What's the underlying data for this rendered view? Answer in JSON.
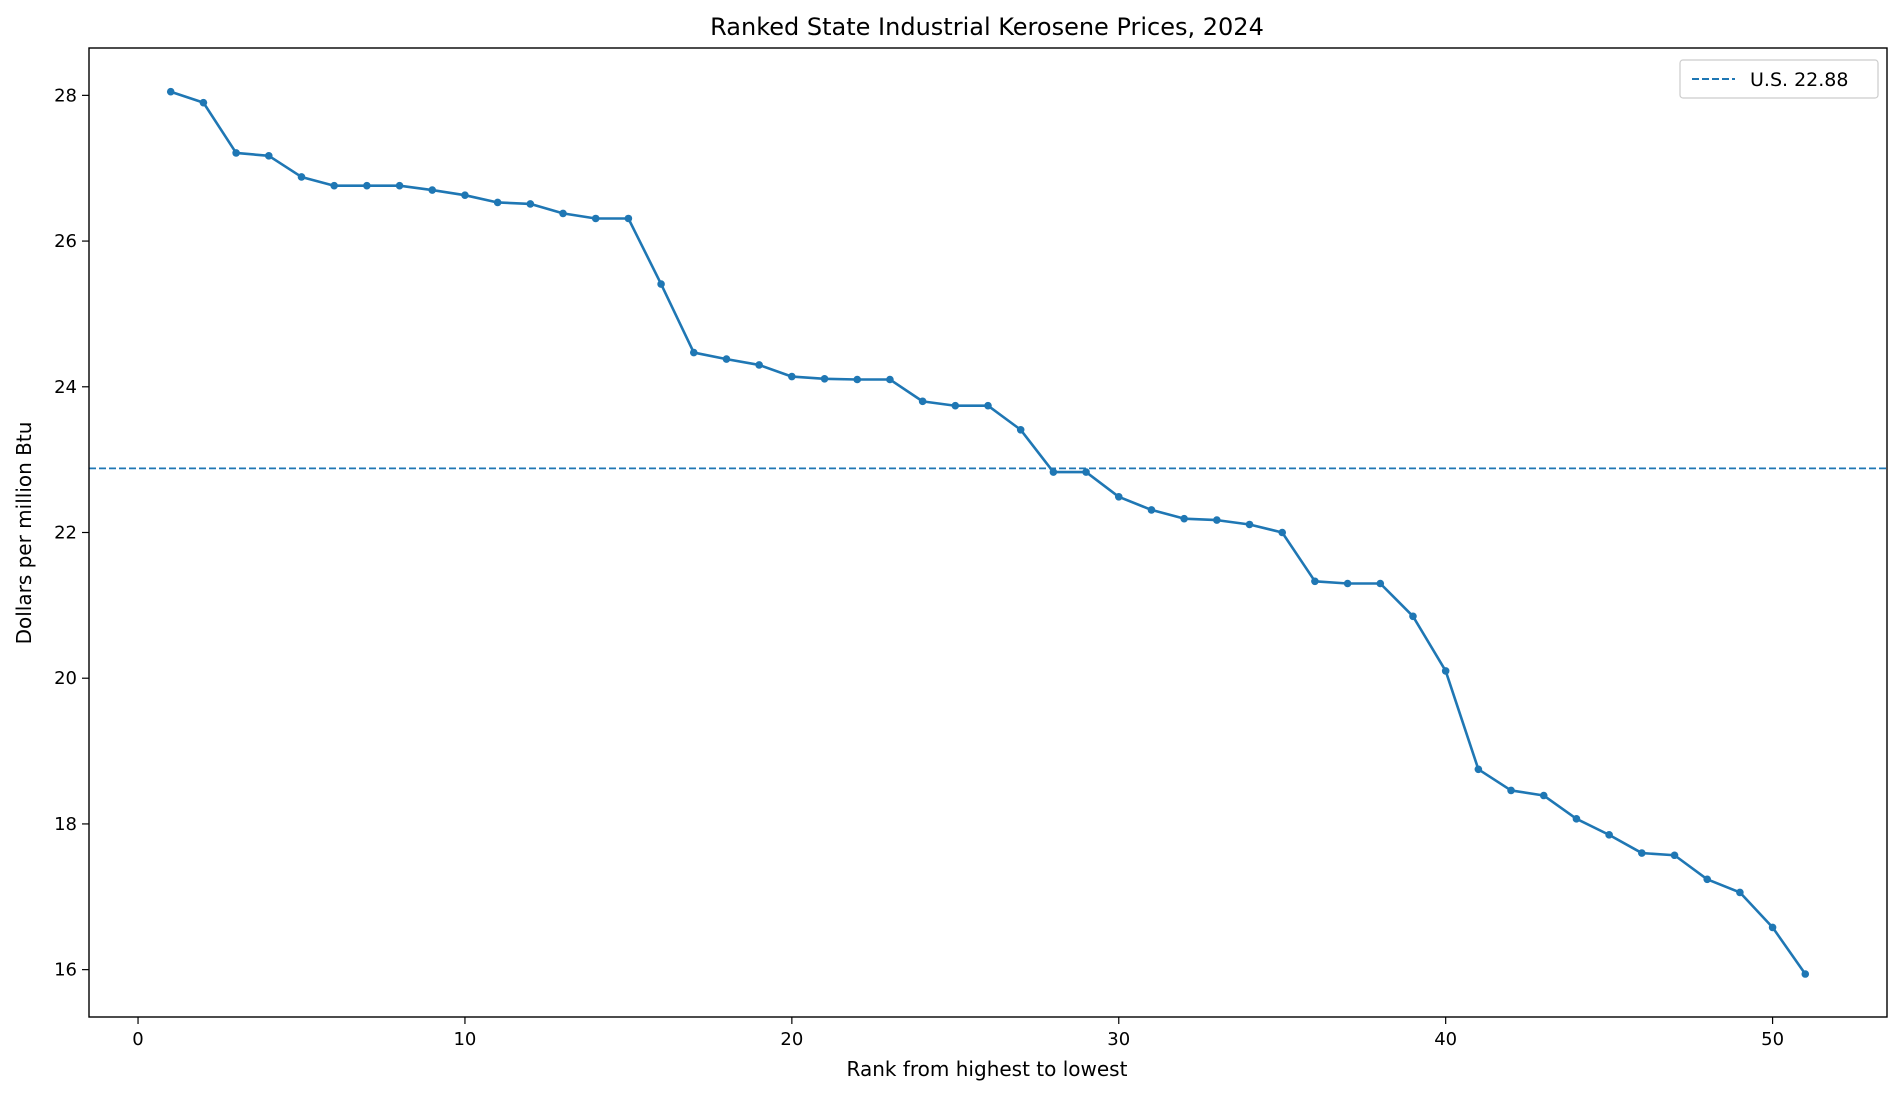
{
  "chart_data": {
    "type": "line",
    "title": "Ranked State Industrial Kerosene Prices, 2024",
    "xlabel": "Rank from highest to lowest",
    "ylabel": "Dollars per million Btu",
    "xlim": [
      -1.5,
      53.5
    ],
    "ylim": [
      15.35,
      28.65
    ],
    "xticks": [
      0,
      10,
      20,
      30,
      40,
      50
    ],
    "yticks": [
      16,
      18,
      20,
      22,
      24,
      26,
      28
    ],
    "grid": false,
    "legend_position": "top-right",
    "series": [
      {
        "color": "#1f77b4",
        "x": [
          1,
          2,
          3,
          4,
          5,
          6,
          7,
          8,
          9,
          10,
          11,
          12,
          13,
          14,
          15,
          16,
          17,
          18,
          19,
          20,
          21,
          22,
          23,
          24,
          25,
          26,
          27,
          28,
          29,
          30,
          31,
          32,
          33,
          34,
          35,
          36,
          37,
          38,
          39,
          40,
          41,
          42,
          43,
          44,
          45,
          46,
          47,
          48,
          49,
          50,
          51
        ],
        "values": [
          28.05,
          27.9,
          27.21,
          27.17,
          26.88,
          26.76,
          26.76,
          26.76,
          26.7,
          26.63,
          26.53,
          26.51,
          26.38,
          26.31,
          26.31,
          25.41,
          24.47,
          24.38,
          24.3,
          24.14,
          24.11,
          24.1,
          24.1,
          23.8,
          23.74,
          23.74,
          23.41,
          22.83,
          22.83,
          22.49,
          22.31,
          22.19,
          22.17,
          22.11,
          22.0,
          21.33,
          21.3,
          21.3,
          20.85,
          20.1,
          18.75,
          18.46,
          18.39,
          18.07,
          17.85,
          17.6,
          17.57,
          17.24,
          17.06,
          16.58,
          15.94
        ]
      }
    ],
    "reference_lines": [
      {
        "label": "U.S. 22.88",
        "value": 22.88,
        "style": "dashed",
        "color": "#1f77b4"
      }
    ]
  }
}
